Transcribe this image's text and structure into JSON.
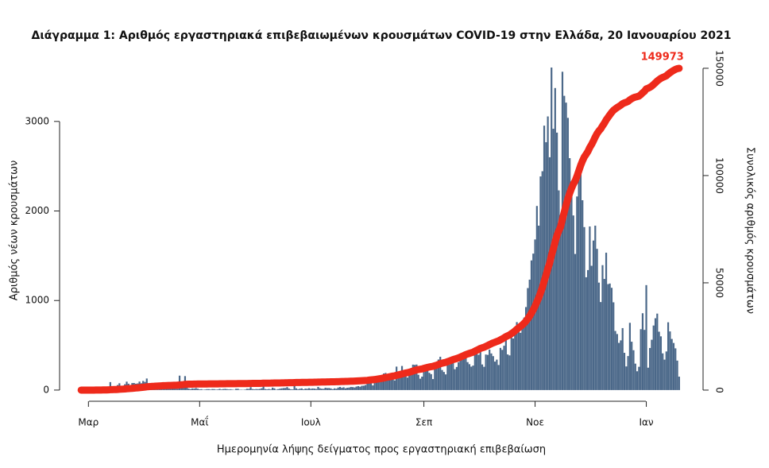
{
  "chart_data": {
    "type": "combo",
    "title": "Διάγραμμα 1: Αριθμός εργαστηριακά επιβεβαιωμένων κρουσμάτων COVID-19 στην Ελλάδα, 20 Ιανουαρίου 2021",
    "x_label": "Ημερομηνία λήψης δείγματος προς εργαστηριακή επιβεβαίωση",
    "y_label": "Αριθμός νέων κρουσμάτων",
    "y2_label": "Συνολικός αριθμός κρουσμάτων",
    "categories": [
      null,
      null,
      null,
      null,
      "Μαρ",
      null,
      null,
      null,
      null,
      null,
      null,
      null,
      null,
      null,
      null,
      null,
      null,
      null,
      null,
      null,
      null,
      null,
      null,
      null,
      null,
      null,
      null,
      null,
      null,
      null,
      null,
      null,
      null,
      null,
      null,
      null,
      null,
      null,
      null,
      null,
      null,
      null,
      null,
      null,
      null,
      null,
      null,
      null,
      null,
      null,
      null,
      null,
      null,
      null,
      null,
      null,
      null,
      null,
      null,
      null,
      null,
      null,
      null,
      null,
      null,
      "Μαΐ",
      null,
      null,
      null,
      null,
      null,
      null,
      null,
      null,
      null,
      null,
      null,
      null,
      null,
      null,
      null,
      null,
      null,
      null,
      null,
      null,
      null,
      null,
      null,
      null,
      null,
      null,
      null,
      null,
      null,
      null,
      null,
      null,
      null,
      null,
      null,
      null,
      null,
      null,
      null,
      null,
      null,
      null,
      null,
      null,
      null,
      null,
      null,
      null,
      null,
      null,
      null,
      null,
      null,
      null,
      null,
      null,
      null,
      null,
      null,
      null,
      "Ιουλ",
      null,
      null,
      null,
      null,
      null,
      null,
      null,
      null,
      null,
      null,
      null,
      null,
      null,
      null,
      null,
      null,
      null,
      null,
      null,
      null,
      null,
      null,
      null,
      null,
      null,
      null,
      null,
      null,
      null,
      null,
      null,
      null,
      null,
      null,
      null,
      null,
      null,
      null,
      null,
      null,
      null,
      null,
      null,
      null,
      null,
      null,
      null,
      null,
      null,
      null,
      null,
      null,
      null,
      null,
      null,
      null,
      null,
      null,
      null,
      null,
      null,
      "Σεπ",
      null,
      null,
      null,
      null,
      null,
      null,
      null,
      null,
      null,
      null,
      null,
      null,
      null,
      null,
      null,
      null,
      null,
      null,
      null,
      null,
      null,
      null,
      null,
      null,
      null,
      null,
      null,
      null,
      null,
      null,
      null,
      null,
      null,
      null,
      null,
      null,
      null,
      null,
      null,
      null,
      null,
      null,
      null,
      null,
      null,
      null,
      null,
      null,
      null,
      null,
      null,
      null,
      null,
      null,
      null,
      null,
      null,
      null,
      null,
      null,
      "Νοε",
      null,
      null,
      null,
      null,
      null,
      null,
      null,
      null,
      null,
      null,
      null,
      null,
      null,
      null,
      null,
      null,
      null,
      null,
      null,
      null,
      null,
      null,
      null,
      null,
      null,
      null,
      null,
      null,
      null,
      null,
      null,
      null,
      null,
      null,
      null,
      null,
      null,
      null,
      null,
      null,
      null,
      null,
      null,
      null,
      null,
      null,
      null,
      null,
      null,
      null,
      null,
      null,
      null,
      null,
      null,
      null,
      null,
      null,
      null,
      null,
      "Ιαν",
      null,
      null,
      null,
      null,
      null,
      null,
      null,
      null,
      null,
      null,
      null,
      null,
      null,
      null,
      null,
      null,
      null,
      null
    ],
    "series": [
      {
        "type": "bar",
        "color": "#4b6889",
        "values": [
          1,
          0,
          1,
          1,
          4,
          0,
          0,
          0,
          22,
          14,
          2,
          7,
          11,
          16,
          10,
          17,
          89,
          38,
          8,
          21,
          56,
          76,
          31,
          46,
          65,
          94,
          71,
          48,
          78,
          79,
          71,
          74,
          95,
          76,
          102,
          91,
          129,
          70,
          62,
          58,
          41,
          62,
          40,
          60,
          56,
          71,
          26,
          40,
          22,
          24,
          36,
          25,
          28,
          15,
          161,
          35,
          75,
          156,
          27,
          16,
          11,
          18,
          16,
          22,
          15,
          8,
          10,
          4,
          6,
          10,
          10,
          6,
          11,
          10,
          5,
          7,
          13,
          7,
          11,
          13,
          10,
          7,
          9,
          5,
          3,
          14,
          14,
          4,
          4,
          3,
          6,
          14,
          13,
          32,
          11,
          8,
          11,
          10,
          12,
          20,
          45,
          11,
          8,
          12,
          7,
          27,
          19,
          5,
          10,
          15,
          19,
          22,
          23,
          33,
          17,
          9,
          8,
          48,
          19,
          9,
          15,
          19,
          8,
          16,
          14,
          21,
          14,
          18,
          16,
          12,
          35,
          20,
          15,
          14,
          26,
          22,
          23,
          18,
          10,
          19,
          15,
          28,
          35,
          25,
          31,
          20,
          26,
          28,
          35,
          33,
          29,
          39,
          44,
          37,
          48,
          49,
          56,
          75,
          110,
          121,
          52,
          99,
          124,
          146,
          144,
          122,
          185,
          191,
          167,
          168,
          183,
          166,
          108,
          262,
          190,
          184,
          269,
          209,
          227,
          140,
          227,
          240,
          284,
          281,
          285,
          171,
          127,
          150,
          236,
          243,
          217,
          193,
          178,
          123,
          277,
          262,
          341,
          372,
          224,
          202,
          175,
          353,
          284,
          323,
          349,
          233,
          258,
          311,
          339,
          394,
          352,
          422,
          312,
          289,
          262,
          274,
          459,
          438,
          394,
          467,
          286,
          260,
          397,
          393,
          452,
          409,
          379,
          318,
          340,
          280,
          471,
          449,
          495,
          561,
          398,
          387,
          621,
          576,
          695,
          759,
          673,
          640,
          705,
          810,
          927,
          1139,
          1233,
          1448,
          1524,
          1682,
          2056,
          1836,
          2386,
          2444,
          2953,
          2768,
          3056,
          2600,
          3602,
          2918,
          3373,
          2875,
          2230,
          1900,
          3555,
          3286,
          3210,
          3040,
          2590,
          2270,
          1950,
          1520,
          2162,
          2480,
          2536,
          2120,
          1820,
          1260,
          1340,
          1827,
          1388,
          1670,
          1836,
          1577,
          1200,
          983,
          1395,
          1241,
          1534,
          1183,
          1190,
          1142,
          980,
          660,
          626,
          527,
          555,
          692,
          416,
          264,
          380,
          751,
          540,
          445,
          295,
          210,
          260,
          680,
          858,
          672,
          1172,
          250,
          470,
          562,
          721,
          802,
          854,
          652,
          600,
          410,
          340,
          431,
          757,
          655,
          571,
          526,
          466,
          329,
          150
        ]
      },
      {
        "type": "line",
        "axis": "y2",
        "color": "#ee2a1b",
        "values": [
          1,
          1,
          2,
          3,
          7,
          7,
          7,
          7,
          29,
          43,
          45,
          52,
          63,
          79,
          89,
          106,
          195,
          233,
          241,
          262,
          318,
          394,
          425,
          471,
          536,
          630,
          701,
          749,
          827,
          906,
          977,
          1051,
          1146,
          1222,
          1324,
          1415,
          1544,
          1614,
          1676,
          1734,
          1775,
          1837,
          1877,
          1937,
          1993,
          2064,
          2090,
          2130,
          2152,
          2176,
          2212,
          2237,
          2265,
          2280,
          2441,
          2476,
          2551,
          2707,
          2734,
          2750,
          2761,
          2779,
          2795,
          2817,
          2832,
          2840,
          2850,
          2854,
          2860,
          2870,
          2880,
          2886,
          2897,
          2907,
          2912,
          2919,
          2932,
          2939,
          2950,
          2963,
          2973,
          2980,
          2989,
          2994,
          2997,
          3011,
          3025,
          3029,
          3033,
          3036,
          3042,
          3056,
          3069,
          3101,
          3112,
          3120,
          3131,
          3141,
          3153,
          3173,
          3218,
          3229,
          3237,
          3249,
          3256,
          3283,
          3302,
          3307,
          3317,
          3332,
          3351,
          3373,
          3396,
          3429,
          3446,
          3455,
          3463,
          3511,
          3530,
          3539,
          3554,
          3573,
          3581,
          3597,
          3611,
          3632,
          3646,
          3664,
          3680,
          3692,
          3727,
          3747,
          3762,
          3776,
          3802,
          3824,
          3847,
          3865,
          3875,
          3894,
          3909,
          3937,
          3972,
          3997,
          4028,
          4048,
          4074,
          4102,
          4137,
          4170,
          4199,
          4238,
          4282,
          4319,
          4367,
          4416,
          4472,
          4547,
          4657,
          4778,
          4830,
          4929,
          5053,
          5199,
          5343,
          5465,
          5650,
          5841,
          6008,
          6176,
          6359,
          6525,
          6633,
          6895,
          7085,
          7269,
          7538,
          7747,
          7974,
          8114,
          8341,
          8581,
          8865,
          9146,
          9431,
          9602,
          9729,
          9879,
          10115,
          10358,
          10575,
          10768,
          10946,
          11069,
          11346,
          11608,
          11949,
          12321,
          12545,
          12747,
          12922,
          13275,
          13559,
          13882,
          14231,
          14464,
          14722,
          15033,
          15372,
          15766,
          16118,
          16540,
          16852,
          17141,
          17403,
          17677,
          18136,
          18574,
          18968,
          19435,
          19721,
          19981,
          20378,
          20771,
          21223,
          21632,
          22011,
          22329,
          22669,
          22949,
          23420,
          23869,
          24364,
          24925,
          25323,
          25710,
          26331,
          26907,
          27602,
          28361,
          29034,
          29674,
          30379,
          31189,
          32116,
          33255,
          34488,
          35936,
          37460,
          39142,
          41198,
          43034,
          45420,
          47864,
          50817,
          53585,
          56641,
          59241,
          62843,
          65761,
          69134,
          72009,
          74239,
          76139,
          79694,
          82980,
          86190,
          89230,
          91820,
          94090,
          96040,
          97560,
          99722,
          102202,
          104738,
          106858,
          108678,
          109938,
          111278,
          113105,
          114493,
          116163,
          117999,
          119576,
          120776,
          121759,
          123154,
          124395,
          125929,
          127112,
          128302,
          129444,
          130424,
          131084,
          131710,
          132237,
          132792,
          133484,
          133900,
          134164,
          134544,
          135295,
          135835,
          136280,
          136575,
          136785,
          137045,
          137725,
          138583,
          139255,
          140427,
          140677,
          141147,
          141709,
          142430,
          143232,
          144086,
          144738,
          145338,
          145748,
          146088,
          146519,
          147276,
          147931,
          148502,
          149028,
          149494,
          149823,
          149973
        ]
      }
    ],
    "ylim": [
      -125,
      3735
    ],
    "yticks": [
      0,
      1000,
      2000,
      3000
    ],
    "y2lim": [
      -5200,
      155900
    ],
    "y2ticks": [
      0,
      50000,
      100000,
      150000
    ]
  }
}
